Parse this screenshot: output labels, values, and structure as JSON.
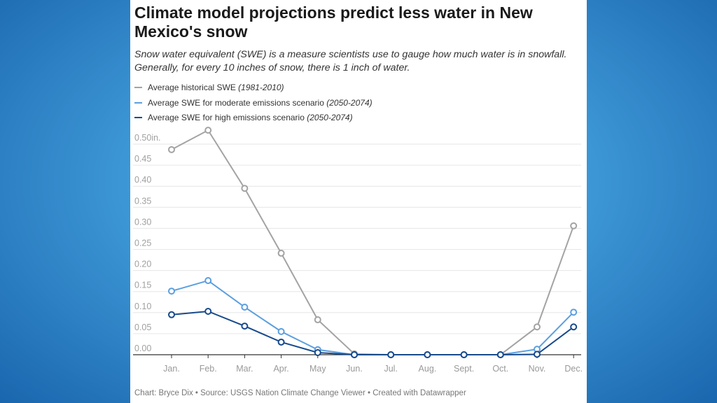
{
  "title": "Climate model projections predict less water in New Mexico's snow",
  "subtitle": "Snow water equivalent (SWE) is a measure scientists use to gauge how much water is in snowfall. Generally, for every 10 inches of snow, there is 1 inch of water.",
  "footer": "Chart: Bryce Dix • Source: USGS Nation Climate Change Viewer • Created with Datawrapper",
  "legend": [
    {
      "label": "Average historical SWE ",
      "period": "(1981-2010)",
      "color": "#a3a3a3"
    },
    {
      "label": "Average SWE for moderate emissions scenario ",
      "period": "(2050-2074)",
      "color": "#5b9fe0"
    },
    {
      "label": "Average SWE for high emissions scenario ",
      "period": "(2050-2074)",
      "color": "#174a8c"
    }
  ],
  "chart_data": {
    "type": "line",
    "categories": [
      "Jan.",
      "Feb.",
      "Mar.",
      "Apr.",
      "May",
      "Jun.",
      "Jul.",
      "Aug.",
      "Sept.",
      "Oct.",
      "Nov.",
      "Dec."
    ],
    "y_ticks": [
      "0.00",
      "0.05",
      "0.10",
      "0.15",
      "0.20",
      "0.25",
      "0.30",
      "0.35",
      "0.40",
      "0.45",
      "0.50in."
    ],
    "ylim": [
      0,
      0.5
    ],
    "grid": true,
    "legend_placement": "top-left",
    "series": [
      {
        "name": "Average historical SWE (1981-2010)",
        "color": "#a3a3a3",
        "values": [
          0.487,
          0.533,
          0.395,
          0.241,
          0.083,
          0.002,
          0,
          0,
          0,
          0,
          0.066,
          0.306
        ]
      },
      {
        "name": "Average SWE for moderate emissions scenario (2050-2074)",
        "color": "#5b9fe0",
        "values": [
          0.151,
          0.176,
          0.113,
          0.055,
          0.012,
          0,
          0,
          0,
          0,
          0,
          0.013,
          0.101
        ]
      },
      {
        "name": "Average SWE for high emissions scenario (2050-2074)",
        "color": "#174a8c",
        "values": [
          0.095,
          0.103,
          0.068,
          0.03,
          0.005,
          0,
          0,
          0,
          0,
          0,
          0.001,
          0.066
        ]
      }
    ]
  }
}
